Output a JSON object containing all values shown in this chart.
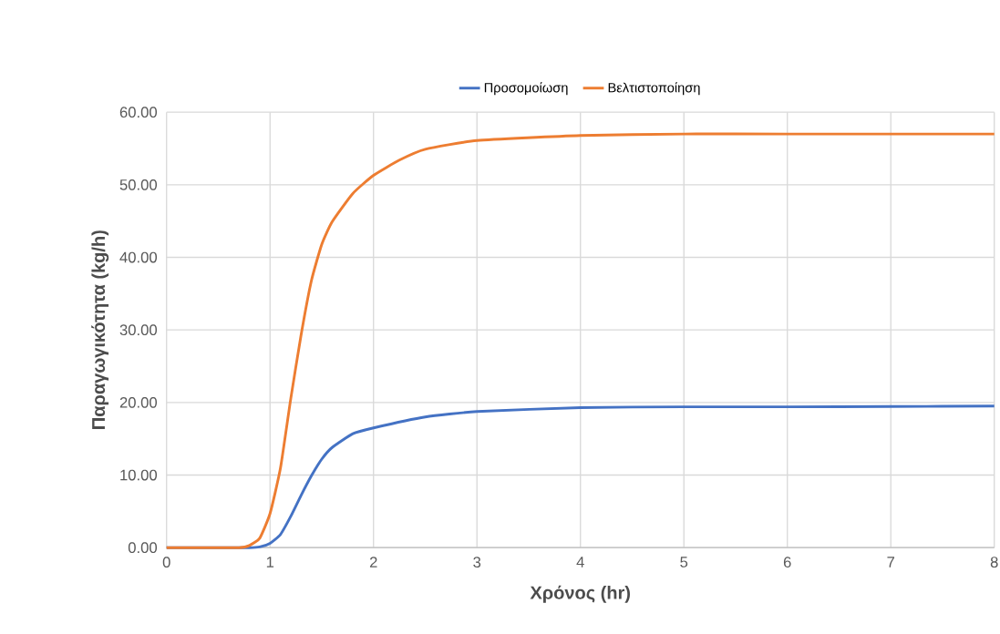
{
  "chart_data": {
    "type": "line",
    "xlabel": "Χρόνος (hr)",
    "ylabel": "Παραγωγικότητα (kg/h)",
    "series": [
      {
        "name": "Προσομοίωση",
        "color": "#4472c4",
        "x": [
          0,
          0.5,
          0.8,
          0.9,
          1.0,
          1.1,
          1.2,
          1.3,
          1.4,
          1.5,
          1.6,
          1.8,
          2.0,
          2.5,
          3.0,
          4.0,
          5.0,
          6.0,
          7.0,
          8.0
        ],
        "values": [
          0,
          0,
          0,
          0.1,
          0.6,
          1.8,
          4.3,
          7.2,
          9.9,
          12.2,
          13.8,
          15.7,
          16.5,
          18.0,
          18.75,
          19.3,
          19.4,
          19.4,
          19.45,
          19.5
        ]
      },
      {
        "name": "Βελτιστοποίηση",
        "color": "#ed7d31",
        "x": [
          0,
          0.5,
          0.7,
          0.8,
          0.9,
          1.0,
          1.1,
          1.2,
          1.3,
          1.4,
          1.5,
          1.6,
          1.8,
          2.0,
          2.25,
          2.5,
          3.0,
          4.0,
          5.0,
          6.0,
          7.0,
          8.0
        ],
        "values": [
          0,
          0,
          0,
          0.3,
          1.3,
          4.7,
          10.9,
          20.5,
          29.3,
          36.8,
          41.8,
          44.9,
          48.8,
          51.3,
          53.4,
          54.9,
          56.1,
          56.8,
          57.0,
          57.0,
          57.0,
          57.0
        ]
      }
    ],
    "xlim": [
      0,
      8
    ],
    "xticks": [
      0,
      1,
      2,
      3,
      4,
      5,
      6,
      7,
      8
    ],
    "ylim": [
      0,
      60
    ],
    "yticks": [
      {
        "value": 0,
        "label": "0.00"
      },
      {
        "value": 10,
        "label": "10.00"
      },
      {
        "value": 20,
        "label": "20.00"
      },
      {
        "value": 30,
        "label": "30.00"
      },
      {
        "value": 40,
        "label": "40.00"
      },
      {
        "value": 50,
        "label": "50.00"
      },
      {
        "value": 60,
        "label": "60.00"
      }
    ],
    "grid": true,
    "legend": "top",
    "marker": "none",
    "line_style": "solid"
  }
}
